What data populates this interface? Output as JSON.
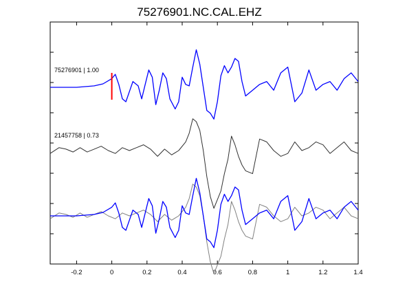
{
  "chart_data": {
    "type": "line",
    "title": "75276901.NC.CAL.EHZ",
    "xlabel": "",
    "ylabel": "",
    "xlim": [
      -0.35,
      1.4
    ],
    "xticks": [
      -0.2,
      0,
      0.2,
      0.4,
      0.6,
      0.8,
      1,
      1.2,
      1.4
    ],
    "xtick_labels": [
      "-0.2",
      "0",
      "0.2",
      "0.4",
      "0.6",
      "0.8",
      "1",
      "1.2",
      "1.4"
    ],
    "grid": false,
    "pick_marker": {
      "x": 0,
      "color": "#ff0000"
    },
    "colors": {
      "primary": "#0000ff",
      "secondary": "#303030",
      "overlay": "#808080"
    },
    "traces": [
      {
        "label": "75276901 | 1.00",
        "color": "#0000ff",
        "row": "top"
      },
      {
        "label": "21457758 | 0.73",
        "color": "#303030",
        "row": "middle"
      }
    ],
    "overlay": {
      "row": "bottom",
      "series_colors": [
        "#808080",
        "#0000ff"
      ]
    },
    "series": [
      {
        "color": "#0000ff",
        "x": [
          -0.35,
          -0.2,
          -0.1,
          -0.05,
          0,
          0.02,
          0.04,
          0.06,
          0.08,
          0.1,
          0.12,
          0.15,
          0.17,
          0.19,
          0.21,
          0.23,
          0.25,
          0.27,
          0.29,
          0.31,
          0.33,
          0.36,
          0.38,
          0.4,
          0.42,
          0.44,
          0.46,
          0.48,
          0.5,
          0.52,
          0.54,
          0.56,
          0.58,
          0.6,
          0.62,
          0.64,
          0.66,
          0.68,
          0.7,
          0.72,
          0.74,
          0.76,
          0.8,
          0.84,
          0.88,
          0.92,
          0.96,
          1.0,
          1.04,
          1.08,
          1.12,
          1.16,
          1.2,
          1.24,
          1.28,
          1.32,
          1.36,
          1.4
        ],
        "y": [
          0,
          0,
          0.05,
          0.12,
          0.3,
          0.45,
          0.1,
          -0.4,
          -0.5,
          -0.15,
          0.2,
          0.05,
          -0.4,
          0.1,
          0.6,
          0.35,
          -0.6,
          -0.1,
          0.5,
          0.3,
          -0.4,
          -0.75,
          -0.5,
          0.35,
          0.1,
          0.05,
          0.7,
          1.3,
          0.8,
          0,
          -0.8,
          -0.9,
          -1.1,
          -0.5,
          0.4,
          0.75,
          0.5,
          0.7,
          1.0,
          0.9,
          0.2,
          -0.3,
          -0.1,
          0.1,
          0.2,
          -0.1,
          0.5,
          0.7,
          -0.5,
          -0.2,
          0.6,
          -0.1,
          0.1,
          0.2,
          -0.1,
          0.3,
          0.5,
          0.2
        ]
      },
      {
        "color": "#303030",
        "x": [
          -0.35,
          -0.3,
          -0.26,
          -0.22,
          -0.18,
          -0.14,
          -0.1,
          -0.06,
          -0.02,
          0.02,
          0.06,
          0.1,
          0.14,
          0.18,
          0.22,
          0.26,
          0.3,
          0.34,
          0.38,
          0.42,
          0.44,
          0.46,
          0.48,
          0.5,
          0.52,
          0.54,
          0.56,
          0.58,
          0.6,
          0.62,
          0.64,
          0.66,
          0.68,
          0.7,
          0.72,
          0.74,
          0.76,
          0.8,
          0.84,
          0.88,
          0.92,
          0.96,
          1.0,
          1.04,
          1.08,
          1.12,
          1.16,
          1.2,
          1.24,
          1.28,
          1.32,
          1.36,
          1.4
        ],
        "y": [
          -0.1,
          0.1,
          0.05,
          -0.05,
          0.1,
          -0.05,
          0.05,
          0.15,
          0.0,
          -0.1,
          0.1,
          0.0,
          0.1,
          0.2,
          0.05,
          -0.2,
          0.05,
          -0.15,
          0.0,
          0.3,
          0.6,
          1.1,
          1.0,
          0.7,
          0.0,
          -0.9,
          -1.6,
          -2.0,
          -1.7,
          -1.4,
          -0.8,
          -0.3,
          0.5,
          0.2,
          -0.2,
          -0.5,
          -0.7,
          -0.8,
          0.4,
          0.3,
          0.0,
          -0.2,
          -0.1,
          0.3,
          0.0,
          0.1,
          0.3,
          0.2,
          -0.1,
          0.1,
          0.3,
          0.0,
          -0.1
        ]
      }
    ]
  }
}
